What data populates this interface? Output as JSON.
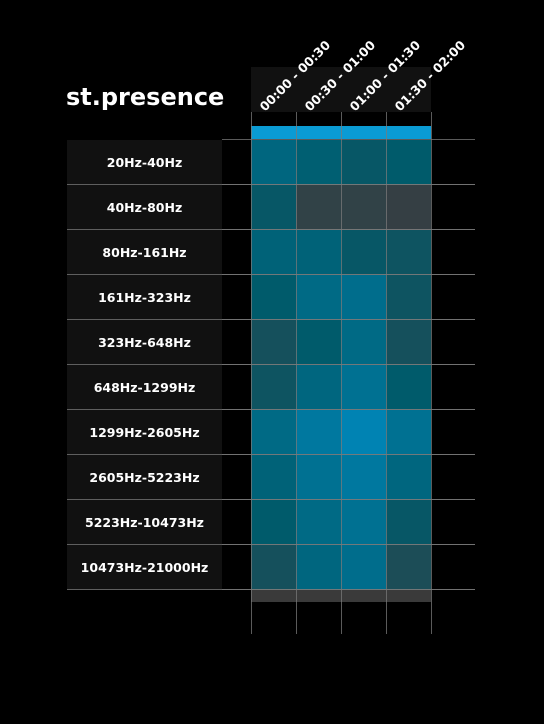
{
  "chart_data": {
    "type": "heatmap",
    "title": "st.presence",
    "rows": [
      "20Hz-40Hz",
      "40Hz-80Hz",
      "80Hz-161Hz",
      "161Hz-323Hz",
      "323Hz-648Hz",
      "648Hz-1299Hz",
      "1299Hz-2605Hz",
      "2605Hz-5223Hz",
      "5223Hz-10473Hz",
      "10473Hz-21000Hz"
    ],
    "columns": [
      "00:00 - 00:30",
      "00:30 - 01:00",
      "01:00 - 01:30",
      "01:30 - 02:00"
    ],
    "values": [
      [
        0.55,
        0.45,
        0.35,
        0.4
      ],
      [
        0.35,
        0.05,
        0.05,
        0.02
      ],
      [
        0.5,
        0.5,
        0.35,
        0.3
      ],
      [
        0.4,
        0.6,
        0.65,
        0.3
      ],
      [
        0.25,
        0.4,
        0.6,
        0.25
      ],
      [
        0.3,
        0.55,
        0.7,
        0.4
      ],
      [
        0.6,
        0.8,
        0.95,
        0.7
      ],
      [
        0.5,
        0.7,
        0.8,
        0.55
      ],
      [
        0.4,
        0.6,
        0.7,
        0.35
      ],
      [
        0.25,
        0.55,
        0.65,
        0.2
      ]
    ],
    "color_scale": {
      "low": "#383e42",
      "mid": "#005b6b",
      "high": "#0087b9"
    },
    "header_bar_color": "#0a9bd4",
    "panel_color": "#111111",
    "grid_color": "#7a7a7a",
    "footer_bar_color": "#3a3a3a"
  }
}
